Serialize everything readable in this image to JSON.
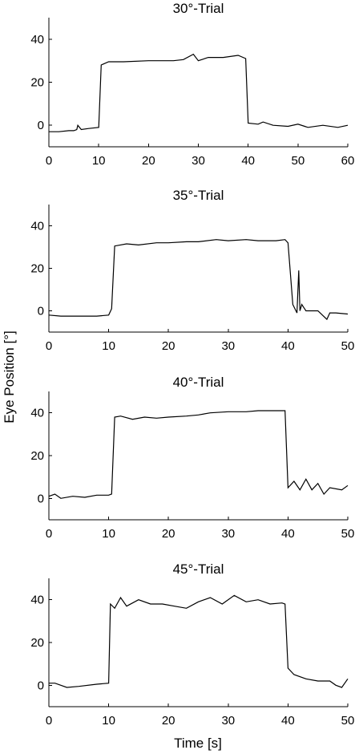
{
  "figure": {
    "ylabel": "Eye Position [°]",
    "xlabel": "Time [s]"
  },
  "chart_data": [
    {
      "type": "line",
      "title": "30°-Trial",
      "xlim": [
        0,
        60
      ],
      "ylim": [
        -10,
        50
      ],
      "xticks": [
        0,
        10,
        20,
        30,
        40,
        50,
        60
      ],
      "yticks": [
        0,
        20,
        40
      ],
      "x": [
        0,
        2,
        4,
        5,
        5.6,
        5.8,
        6.5,
        8,
        10,
        10.5,
        12,
        15,
        20,
        25,
        27,
        29,
        30,
        32,
        35,
        38,
        39.5,
        40,
        42,
        43,
        45,
        48,
        50,
        52,
        55,
        58,
        60
      ],
      "y": [
        -3,
        -3,
        -2.5,
        -2.5,
        -2,
        0,
        -2,
        -1.5,
        -1,
        28,
        29.5,
        29.5,
        30,
        30,
        30.5,
        33,
        30,
        31.5,
        31.5,
        32.5,
        31,
        1,
        0.5,
        1.5,
        0,
        -0.5,
        0.5,
        -1,
        0,
        -1,
        0
      ]
    },
    {
      "type": "line",
      "title": "35°-Trial",
      "xlim": [
        0,
        50
      ],
      "ylim": [
        -10,
        50
      ],
      "xticks": [
        0,
        10,
        20,
        30,
        40,
        50
      ],
      "yticks": [
        0,
        20,
        40
      ],
      "x": [
        0,
        2,
        5,
        8,
        10,
        10.5,
        11,
        13,
        15,
        18,
        20,
        23,
        25,
        28,
        30,
        33,
        35,
        38,
        39.5,
        40,
        40.8,
        41.5,
        41.8,
        42,
        42.3,
        43,
        45,
        46.5,
        47,
        48,
        50
      ],
      "y": [
        -2,
        -2.5,
        -2.5,
        -2.5,
        -2,
        1,
        30.5,
        31.5,
        31,
        32,
        32,
        32.5,
        32.5,
        33.5,
        33,
        33.5,
        33,
        33,
        33.5,
        32,
        3,
        -1,
        19,
        0,
        3,
        0,
        0,
        -4,
        -1,
        -1,
        -1.5
      ]
    },
    {
      "type": "line",
      "title": "40°-Trial",
      "xlim": [
        0,
        50
      ],
      "ylim": [
        -10,
        50
      ],
      "xticks": [
        0,
        10,
        20,
        30,
        40,
        50
      ],
      "yticks": [
        0,
        20,
        40
      ],
      "x": [
        0,
        1,
        2,
        4,
        6,
        8,
        10,
        10.5,
        11,
        12,
        14,
        16,
        18,
        20,
        23,
        25,
        27,
        30,
        33,
        35,
        37,
        39.5,
        40,
        41,
        42,
        43,
        44,
        45,
        46,
        47,
        49,
        50
      ],
      "y": [
        1,
        2,
        0,
        1,
        0.5,
        1.5,
        1.5,
        2,
        38,
        38.5,
        37,
        38,
        37.5,
        38,
        38.5,
        39,
        40,
        40.5,
        40.5,
        41,
        41,
        41,
        5,
        8,
        4,
        9,
        4,
        7,
        2,
        5,
        4,
        6
      ]
    },
    {
      "type": "line",
      "title": "45°-Trial",
      "xlim": [
        0,
        50
      ],
      "ylim": [
        -10,
        50
      ],
      "xticks": [
        0,
        10,
        20,
        30,
        40,
        50
      ],
      "yticks": [
        0,
        20,
        40
      ],
      "x": [
        0,
        1,
        2,
        3,
        5,
        8,
        10,
        10.3,
        11,
        12,
        13,
        15,
        17,
        19,
        21,
        23,
        25,
        27,
        29,
        31,
        33,
        35,
        37,
        39,
        39.5,
        40,
        41,
        43,
        45,
        47,
        48,
        49,
        50
      ],
      "y": [
        1,
        1,
        0,
        -1,
        -0.5,
        0.5,
        1,
        38,
        36,
        41,
        37,
        40,
        38,
        38,
        37,
        36,
        39,
        41,
        38,
        42,
        39,
        40,
        38,
        38.5,
        38,
        8,
        5,
        3,
        2,
        2,
        0,
        -1,
        3
      ]
    }
  ]
}
